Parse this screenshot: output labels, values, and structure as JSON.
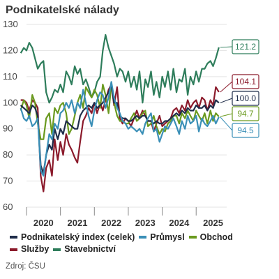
{
  "chart_data": {
    "type": "line",
    "title": "Podnikatelské nálady",
    "source": "Zdroj: ČSU",
    "ylim": [
      60,
      130
    ],
    "yticks": [
      60,
      70,
      80,
      90,
      100,
      110,
      120,
      130
    ],
    "xlim": [
      2019.5,
      2025.4
    ],
    "xticks": [
      {
        "label": "2020",
        "value": 2020.0
      },
      {
        "label": "2021",
        "value": 2021.0
      },
      {
        "label": "2022",
        "value": 2022.0
      },
      {
        "label": "2023",
        "value": 2023.0
      },
      {
        "label": "2024",
        "value": 2024.0
      },
      {
        "label": "2025",
        "value": 2025.0
      }
    ],
    "grid": true,
    "legend_position": "bottom",
    "series": [
      {
        "name": "Stavebnictví",
        "color": "#2e7d5b",
        "end_label": "121.2",
        "x": [
          2019.33,
          2019.42,
          2019.5,
          2019.58,
          2019.67,
          2019.75,
          2019.83,
          2019.92,
          2020.0,
          2020.08,
          2020.17,
          2020.25,
          2020.33,
          2020.42,
          2020.5,
          2020.58,
          2020.67,
          2020.75,
          2020.83,
          2020.92,
          2021.0,
          2021.08,
          2021.17,
          2021.25,
          2021.33,
          2021.42,
          2021.5,
          2021.58,
          2021.67,
          2021.75,
          2021.83,
          2021.92,
          2022.0,
          2022.08,
          2022.17,
          2022.25,
          2022.33,
          2022.42,
          2022.5,
          2022.58,
          2022.67,
          2022.75,
          2022.83,
          2022.92,
          2023.0,
          2023.08,
          2023.17,
          2023.25,
          2023.33,
          2023.42,
          2023.5,
          2023.58,
          2023.67,
          2023.75,
          2023.83,
          2023.92,
          2024.0,
          2024.08,
          2024.17,
          2024.25,
          2024.33,
          2024.42,
          2024.5,
          2024.58,
          2024.67,
          2024.75,
          2024.83,
          2024.92,
          2025.0,
          2025.08,
          2025.17
        ],
        "values": [
          119,
          121,
          120,
          123,
          121,
          117,
          113,
          115,
          116,
          104,
          100,
          102,
          105,
          104,
          107,
          104,
          112,
          110,
          107,
          114,
          111,
          113,
          107,
          109,
          106,
          102,
          104,
          108,
          110,
          120,
          126,
          121,
          118,
          115,
          110,
          113,
          112,
          108,
          112,
          106,
          110,
          105,
          112,
          100,
          109,
          106,
          112,
          103,
          108,
          102,
          110,
          106,
          112,
          105,
          113,
          104,
          109,
          108,
          113,
          103,
          110,
          107,
          112,
          108,
          113,
          113,
          115,
          116,
          114,
          117,
          121.2
        ]
      },
      {
        "name": "Služby",
        "color": "#8b1a2b",
        "end_label": "104.1",
        "x": [
          2019.33,
          2019.42,
          2019.5,
          2019.58,
          2019.67,
          2019.75,
          2019.83,
          2019.92,
          2020.0,
          2020.08,
          2020.17,
          2020.25,
          2020.33,
          2020.42,
          2020.5,
          2020.58,
          2020.67,
          2020.75,
          2020.83,
          2020.92,
          2021.0,
          2021.08,
          2021.17,
          2021.25,
          2021.33,
          2021.42,
          2021.5,
          2021.58,
          2021.67,
          2021.75,
          2021.83,
          2021.92,
          2022.0,
          2022.08,
          2022.17,
          2022.25,
          2022.33,
          2022.42,
          2022.5,
          2022.58,
          2022.67,
          2022.75,
          2022.83,
          2022.92,
          2023.0,
          2023.08,
          2023.17,
          2023.25,
          2023.33,
          2023.42,
          2023.5,
          2023.58,
          2023.67,
          2023.75,
          2023.83,
          2023.92,
          2024.0,
          2024.08,
          2024.17,
          2024.25,
          2024.33,
          2024.42,
          2024.5,
          2024.58,
          2024.67,
          2024.75,
          2024.83,
          2024.92,
          2025.0,
          2025.08,
          2025.17
        ],
        "values": [
          101,
          101,
          100,
          97,
          101,
          100,
          98,
          72,
          66,
          75,
          78,
          72,
          86,
          78,
          85,
          80,
          88,
          84,
          82,
          79,
          77,
          85,
          93,
          95,
          98,
          96,
          100,
          96,
          100,
          97,
          101,
          105,
          107,
          99,
          106,
          94,
          92,
          94,
          93,
          91,
          94,
          97,
          94,
          97,
          95,
          93,
          93,
          89,
          92,
          95,
          91,
          92,
          93,
          94,
          97,
          98,
          96,
          99,
          97,
          101,
          98,
          100,
          101,
          98,
          102,
          101,
          97,
          101,
          99,
          106,
          104.1
        ]
      },
      {
        "name": "Obchod",
        "color": "#6a9a1f",
        "end_label": "94.7",
        "x": [
          2019.33,
          2019.42,
          2019.5,
          2019.58,
          2019.67,
          2019.75,
          2019.83,
          2019.92,
          2020.0,
          2020.08,
          2020.17,
          2020.25,
          2020.33,
          2020.42,
          2020.5,
          2020.58,
          2020.67,
          2020.75,
          2020.83,
          2020.92,
          2021.0,
          2021.08,
          2021.17,
          2021.25,
          2021.33,
          2021.42,
          2021.5,
          2021.58,
          2021.67,
          2021.75,
          2021.83,
          2021.92,
          2022.0,
          2022.08,
          2022.17,
          2022.25,
          2022.33,
          2022.42,
          2022.5,
          2022.58,
          2022.67,
          2022.75,
          2022.83,
          2022.92,
          2023.0,
          2023.08,
          2023.17,
          2023.25,
          2023.33,
          2023.42,
          2023.5,
          2023.58,
          2023.67,
          2023.75,
          2023.83,
          2023.92,
          2024.0,
          2024.08,
          2024.17,
          2024.25,
          2024.33,
          2024.42,
          2024.5,
          2024.58,
          2024.67,
          2024.75,
          2024.83,
          2024.92,
          2025.0,
          2025.08,
          2025.17
        ],
        "values": [
          97,
          101,
          99,
          94,
          103,
          100,
          92,
          86,
          86,
          94,
          96,
          88,
          98,
          96,
          99,
          100,
          96,
          88,
          90,
          95,
          100,
          103,
          98,
          106,
          104,
          102,
          105,
          103,
          98,
          107,
          103,
          96,
          107,
          100,
          95,
          93,
          93,
          92,
          92,
          94,
          96,
          93,
          94,
          96,
          97,
          91,
          92,
          95,
          91,
          88,
          90,
          89,
          92,
          93,
          95,
          95,
          92,
          96,
          94,
          97,
          95,
          93,
          97,
          95,
          93,
          96,
          92,
          97,
          93,
          96,
          94.7
        ]
      },
      {
        "name": "Podnikatelský index (celek)",
        "color": "#1f2d4a",
        "end_label": "100.0",
        "x": [
          2019.33,
          2019.42,
          2019.5,
          2019.58,
          2019.67,
          2019.75,
          2019.83,
          2019.92,
          2020.0,
          2020.08,
          2020.17,
          2020.25,
          2020.33,
          2020.42,
          2020.5,
          2020.58,
          2020.67,
          2020.75,
          2020.83,
          2020.92,
          2021.0,
          2021.08,
          2021.17,
          2021.25,
          2021.33,
          2021.42,
          2021.5,
          2021.58,
          2021.67,
          2021.75,
          2021.83,
          2021.92,
          2022.0,
          2022.08,
          2022.17,
          2022.25,
          2022.33,
          2022.42,
          2022.5,
          2022.58,
          2022.67,
          2022.75,
          2022.83,
          2022.92,
          2023.0,
          2023.08,
          2023.17,
          2023.25,
          2023.33,
          2023.42,
          2023.5,
          2023.58,
          2023.67,
          2023.75,
          2023.83,
          2023.92,
          2024.0,
          2024.08,
          2024.17,
          2024.25,
          2024.33,
          2024.42,
          2024.5,
          2024.58,
          2024.67,
          2024.75,
          2024.83,
          2024.92,
          2025.0,
          2025.08,
          2025.17
        ],
        "values": [
          99,
          98,
          97,
          96,
          99,
          98,
          95,
          76,
          73,
          80,
          84,
          82,
          90,
          86,
          90,
          88,
          93,
          92,
          91,
          90,
          90,
          95,
          97,
          98,
          99,
          98,
          100,
          98,
          99,
          100,
          102,
          104,
          107,
          100,
          100,
          95,
          94,
          94,
          93,
          93,
          94,
          95,
          94,
          95,
          95,
          93,
          93,
          92,
          93,
          92,
          92,
          93,
          93,
          94,
          95,
          96,
          95,
          97,
          96,
          98,
          97,
          97,
          99,
          98,
          98,
          99,
          97,
          99,
          98,
          101,
          100.0
        ]
      },
      {
        "name": "Průmysl",
        "color": "#3a8fb7",
        "end_label": "94.5",
        "x": [
          2019.33,
          2019.42,
          2019.5,
          2019.58,
          2019.67,
          2019.75,
          2019.83,
          2019.92,
          2020.0,
          2020.08,
          2020.17,
          2020.25,
          2020.33,
          2020.42,
          2020.5,
          2020.58,
          2020.67,
          2020.75,
          2020.83,
          2020.92,
          2021.0,
          2021.08,
          2021.17,
          2021.25,
          2021.33,
          2021.42,
          2021.5,
          2021.58,
          2021.67,
          2021.75,
          2021.83,
          2021.92,
          2022.0,
          2022.08,
          2022.17,
          2022.25,
          2022.33,
          2022.42,
          2022.5,
          2022.58,
          2022.67,
          2022.75,
          2022.83,
          2022.92,
          2023.0,
          2023.08,
          2023.17,
          2023.25,
          2023.33,
          2023.42,
          2023.5,
          2023.58,
          2023.67,
          2023.75,
          2023.83,
          2023.92,
          2024.0,
          2024.08,
          2024.17,
          2024.25,
          2024.33,
          2024.42,
          2024.5,
          2024.58,
          2024.67,
          2024.75,
          2024.83,
          2024.92,
          2025.0,
          2025.08,
          2025.17
        ],
        "values": [
          98,
          94,
          93,
          95,
          91,
          92,
          94,
          74,
          72,
          80,
          88,
          86,
          92,
          90,
          96,
          97,
          100,
          98,
          101,
          96,
          100,
          98,
          105,
          100,
          95,
          91,
          97,
          101,
          104,
          103,
          98,
          102,
          108,
          102,
          98,
          96,
          93,
          92,
          90,
          91,
          90,
          89,
          90,
          88,
          92,
          94,
          96,
          89,
          90,
          85,
          88,
          91,
          90,
          92,
          94,
          91,
          88,
          93,
          90,
          95,
          92,
          93,
          95,
          89,
          94,
          92,
          91,
          93,
          95,
          92,
          94.5
        ]
      }
    ]
  }
}
